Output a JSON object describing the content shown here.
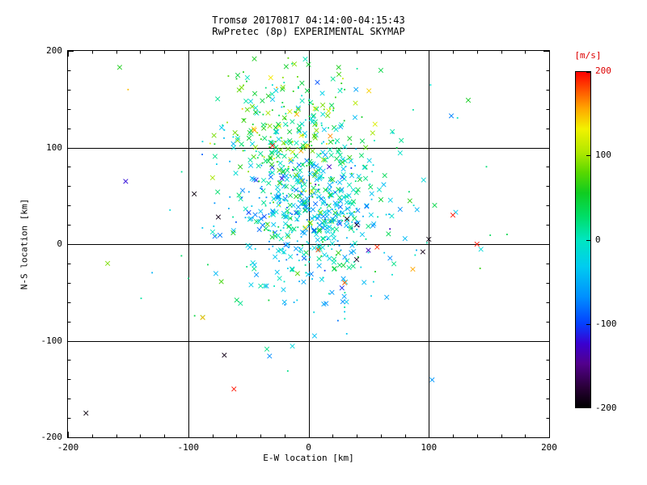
{
  "chart_data": {
    "type": "scatter",
    "title": "Tromsø 20170817 04:14:00-04:15:43",
    "subtitle": "RwPretec (8p) EXPERIMENTAL SKYMAP",
    "xlabel": "E-W location [km]",
    "ylabel": "N-S location [km]",
    "xlim": [
      -200,
      200
    ],
    "ylim": [
      -200,
      200
    ],
    "xticks": [
      -200,
      -100,
      0,
      100,
      200
    ],
    "yticks": [
      200,
      100,
      0,
      -100,
      -200
    ],
    "grid_values": [
      -100,
      0,
      100
    ],
    "grid": true,
    "minor_tick_step_km": 20,
    "point_color_meaning": "Doppler velocity [m/s]",
    "marker_styles": [
      "x",
      "dot"
    ],
    "colorbar": {
      "label": "[m/s]",
      "label_color": "#dd0000",
      "min": -200,
      "max": 200,
      "ticks": [
        200,
        100,
        0,
        -100,
        -200
      ],
      "tick_colors": [
        "#dd0000",
        "#000000",
        "#000000",
        "#000000",
        "#000000"
      ],
      "stops": [
        {
          "p": 0.0,
          "c": "#000000"
        },
        {
          "p": 0.06,
          "c": "#2a0038"
        },
        {
          "p": 0.13,
          "c": "#52008c"
        },
        {
          "p": 0.19,
          "c": "#3a00d0"
        },
        {
          "p": 0.25,
          "c": "#0440ff"
        },
        {
          "p": 0.33,
          "c": "#0090ff"
        },
        {
          "p": 0.42,
          "c": "#00ccf0"
        },
        {
          "p": 0.5,
          "c": "#00e6c0"
        },
        {
          "p": 0.57,
          "c": "#00dd66"
        },
        {
          "p": 0.64,
          "c": "#10cc20"
        },
        {
          "p": 0.7,
          "c": "#58d800"
        },
        {
          "p": 0.76,
          "c": "#b0e800"
        },
        {
          "p": 0.83,
          "c": "#f2f200"
        },
        {
          "p": 0.89,
          "c": "#ffa800"
        },
        {
          "p": 0.95,
          "c": "#ff4c00"
        },
        {
          "p": 1.0,
          "c": "#ff0000"
        }
      ]
    },
    "clusters": [
      {
        "n": 520,
        "cx": 2,
        "cy": 32,
        "sx": 30,
        "sy": 40,
        "v_mean": -20,
        "v_sd": 38,
        "x_ratio": 0.6,
        "seed": 101
      },
      {
        "n": 230,
        "cx": -18,
        "cy": 112,
        "sx": 30,
        "sy": 32,
        "v_mean": 55,
        "v_sd": 45,
        "x_ratio": 0.6,
        "seed": 202
      },
      {
        "n": 140,
        "cx": 5,
        "cy": 25,
        "sx": 62,
        "sy": 60,
        "v_mean": -10,
        "v_sd": 55,
        "x_ratio": 0.5,
        "seed": 303
      },
      {
        "n": 28,
        "cx": -8,
        "cy": 168,
        "sx": 42,
        "sy": 12,
        "v_mean": 45,
        "v_sd": 40,
        "x_ratio": 0.6,
        "seed": 404
      }
    ],
    "outlier_points": [
      [
        -185,
        -175,
        -195,
        "x"
      ],
      [
        -70,
        -115,
        -190,
        "x"
      ],
      [
        -62,
        -150,
        195,
        "x"
      ],
      [
        -88,
        -76,
        150,
        "x"
      ],
      [
        -167,
        -20,
        90,
        "x"
      ],
      [
        -152,
        65,
        -120,
        "x"
      ],
      [
        -150,
        160,
        150,
        "dot"
      ],
      [
        -157,
        183,
        60,
        "x"
      ],
      [
        -95,
        52,
        -195,
        "x"
      ],
      [
        -75,
        28,
        -190,
        "x"
      ],
      [
        120,
        30,
        195,
        "x"
      ],
      [
        140,
        0,
        195,
        "x"
      ],
      [
        95,
        -8,
        -190,
        "x"
      ],
      [
        100,
        5,
        -195,
        "x"
      ],
      [
        165,
        10,
        40,
        "dot"
      ],
      [
        57,
        -3,
        190,
        "x"
      ],
      [
        30,
        -40,
        175,
        "x"
      ],
      [
        40,
        -16,
        -185,
        "x"
      ],
      [
        32,
        26,
        -195,
        "x"
      ],
      [
        40,
        20,
        -185,
        "x"
      ],
      [
        8,
        -6,
        185,
        "x"
      ],
      [
        -30,
        102,
        195,
        "x"
      ],
      [
        -45,
        118,
        160,
        "x"
      ],
      [
        -55,
        140,
        150,
        "dot"
      ],
      [
        25,
        183,
        60,
        "x"
      ],
      [
        0,
        186,
        50,
        "x"
      ],
      [
        30,
        160,
        45,
        "dot"
      ],
      [
        70,
        115,
        -30,
        "dot"
      ],
      [
        5,
        -95,
        -40,
        "x"
      ],
      [
        30,
        -70,
        -35,
        "dot"
      ],
      [
        -20,
        -60,
        -45,
        "x"
      ],
      [
        65,
        -55,
        -55,
        "x"
      ]
    ]
  }
}
